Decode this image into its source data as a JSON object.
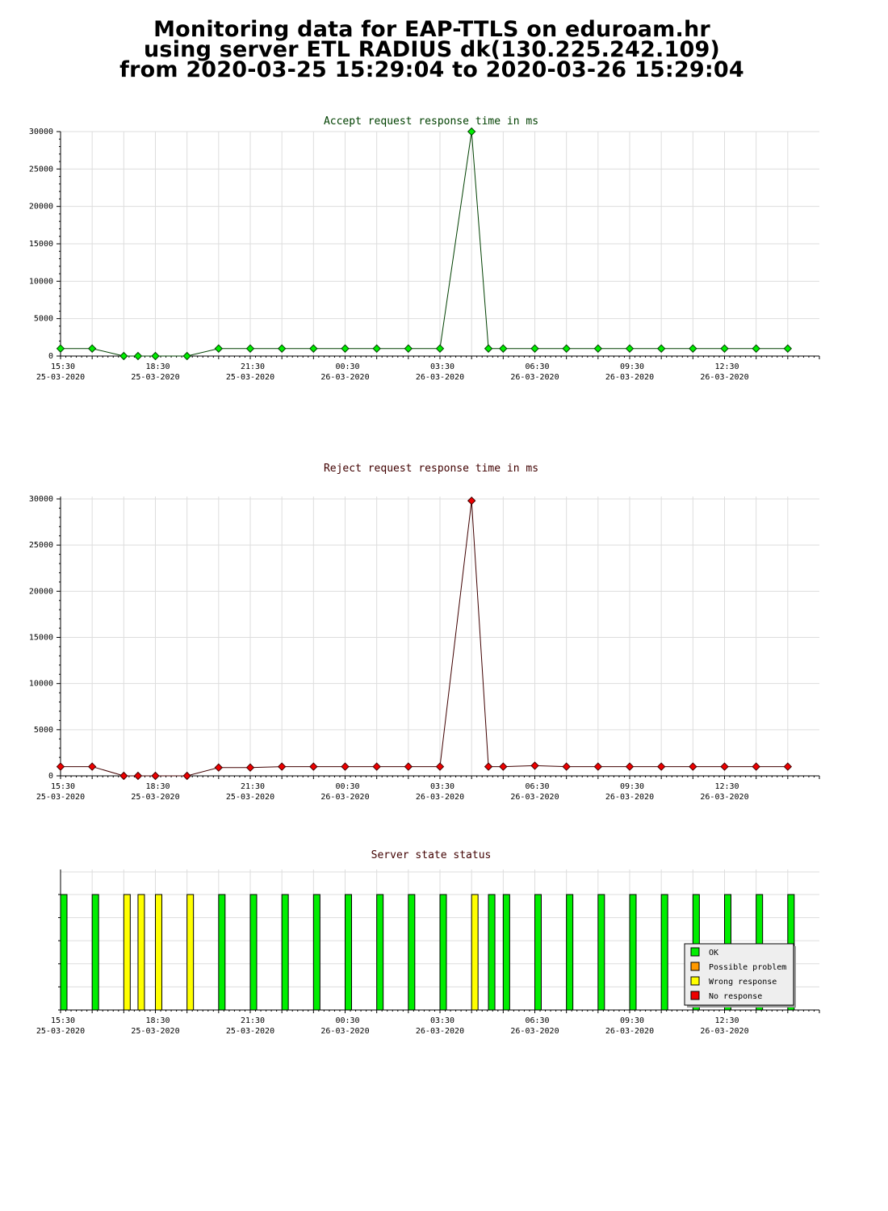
{
  "header": {
    "line1": "Monitoring data for EAP-TTLS on eduroam.hr",
    "line2": "using server ETL RADIUS dk(130.225.242.109)",
    "line3": "from 2020-03-25 15:29:04 to 2020-03-26 15:29:04"
  },
  "x_ticks": [
    {
      "time": "15:30",
      "date": "25-03-2020"
    },
    {
      "time": "18:30",
      "date": "25-03-2020"
    },
    {
      "time": "21:30",
      "date": "25-03-2020"
    },
    {
      "time": "00:30",
      "date": "26-03-2020"
    },
    {
      "time": "03:30",
      "date": "26-03-2020"
    },
    {
      "time": "06:30",
      "date": "26-03-2020"
    },
    {
      "time": "09:30",
      "date": "26-03-2020"
    },
    {
      "time": "12:30",
      "date": "26-03-2020"
    }
  ],
  "chart_data": [
    {
      "type": "line",
      "title": "Accept request response time in ms",
      "title_color": "#004000",
      "line_color": "#004000",
      "marker_color": "#00ee00",
      "ylim": [
        0,
        30000
      ],
      "y_ticks": [
        0,
        5000,
        10000,
        15000,
        20000,
        25000,
        30000
      ],
      "xlim": [
        "2020-03-25 15:30",
        "2020-03-26 15:30"
      ],
      "grid": true,
      "x": [
        "2020-03-25 15:30",
        "2020-03-25 16:30",
        "2020-03-25 17:30",
        "2020-03-25 17:57",
        "2020-03-25 18:30",
        "2020-03-25 19:30",
        "2020-03-25 20:30",
        "2020-03-25 21:30",
        "2020-03-25 22:30",
        "2020-03-25 23:30",
        "2020-03-26 00:30",
        "2020-03-26 01:30",
        "2020-03-26 02:30",
        "2020-03-26 03:30",
        "2020-03-26 04:30",
        "2020-03-26 05:02",
        "2020-03-26 05:30",
        "2020-03-26 06:30",
        "2020-03-26 07:30",
        "2020-03-26 08:30",
        "2020-03-26 09:30",
        "2020-03-26 10:30",
        "2020-03-26 11:30",
        "2020-03-26 12:30",
        "2020-03-26 13:30",
        "2020-03-26 14:30"
      ],
      "y": [
        1000,
        1000,
        0,
        0,
        0,
        0,
        1000,
        1000,
        1000,
        1000,
        1000,
        1000,
        1000,
        1000,
        30000,
        1000,
        1000,
        1000,
        1000,
        1000,
        1000,
        1000,
        1000,
        1000,
        1000,
        1000
      ]
    },
    {
      "type": "line",
      "title": "Reject request response time in ms",
      "title_color": "#400000",
      "line_color": "#400000",
      "marker_color": "#ee0000",
      "ylim": [
        0,
        30000
      ],
      "y_ticks": [
        0,
        5000,
        10000,
        15000,
        20000,
        25000,
        30000
      ],
      "xlim": [
        "2020-03-25 15:30",
        "2020-03-26 15:30"
      ],
      "grid": true,
      "x": [
        "2020-03-25 15:30",
        "2020-03-25 16:30",
        "2020-03-25 17:30",
        "2020-03-25 17:57",
        "2020-03-25 18:30",
        "2020-03-25 19:30",
        "2020-03-25 20:30",
        "2020-03-25 21:30",
        "2020-03-25 22:30",
        "2020-03-25 23:30",
        "2020-03-26 00:30",
        "2020-03-26 01:30",
        "2020-03-26 02:30",
        "2020-03-26 03:30",
        "2020-03-26 04:30",
        "2020-03-26 05:02",
        "2020-03-26 05:30",
        "2020-03-26 06:30",
        "2020-03-26 07:30",
        "2020-03-26 08:30",
        "2020-03-26 09:30",
        "2020-03-26 10:30",
        "2020-03-26 11:30",
        "2020-03-26 12:30",
        "2020-03-26 13:30",
        "2020-03-26 14:30"
      ],
      "y": [
        1000,
        1000,
        0,
        0,
        0,
        0,
        900,
        900,
        1000,
        1000,
        1000,
        1000,
        1000,
        1000,
        29800,
        1000,
        1000,
        1100,
        1000,
        1000,
        1000,
        1000,
        1000,
        1000,
        1000,
        1000
      ]
    },
    {
      "type": "bar",
      "title": "Server state status",
      "title_color": "#400000",
      "xlim": [
        "2020-03-25 15:30",
        "2020-03-26 15:30"
      ],
      "grid": true,
      "legend_placement": "bottom-right",
      "legend": [
        {
          "label": "OK",
          "color": "#00ee00"
        },
        {
          "label": "Possible problem",
          "color": "#ff9900"
        },
        {
          "label": "Wrong response",
          "color": "#ffff00"
        },
        {
          "label": "No response",
          "color": "#ee0000"
        }
      ],
      "x": [
        "2020-03-25 15:30",
        "2020-03-25 16:30",
        "2020-03-25 17:30",
        "2020-03-25 17:57",
        "2020-03-25 18:30",
        "2020-03-25 19:30",
        "2020-03-25 20:30",
        "2020-03-25 21:30",
        "2020-03-25 22:30",
        "2020-03-25 23:30",
        "2020-03-26 00:30",
        "2020-03-26 01:30",
        "2020-03-26 02:30",
        "2020-03-26 03:30",
        "2020-03-26 04:30",
        "2020-03-26 05:02",
        "2020-03-26 05:30",
        "2020-03-26 06:30",
        "2020-03-26 07:30",
        "2020-03-26 08:30",
        "2020-03-26 09:30",
        "2020-03-26 10:30",
        "2020-03-26 11:30",
        "2020-03-26 12:30",
        "2020-03-26 13:30",
        "2020-03-26 14:30"
      ],
      "status": [
        "OK",
        "OK",
        "Wrong response",
        "Wrong response",
        "Wrong response",
        "Wrong response",
        "OK",
        "OK",
        "OK",
        "OK",
        "OK",
        "OK",
        "OK",
        "OK",
        "Wrong response",
        "OK",
        "OK",
        "OK",
        "OK",
        "OK",
        "OK",
        "OK",
        "OK",
        "OK",
        "OK",
        "OK"
      ]
    }
  ]
}
